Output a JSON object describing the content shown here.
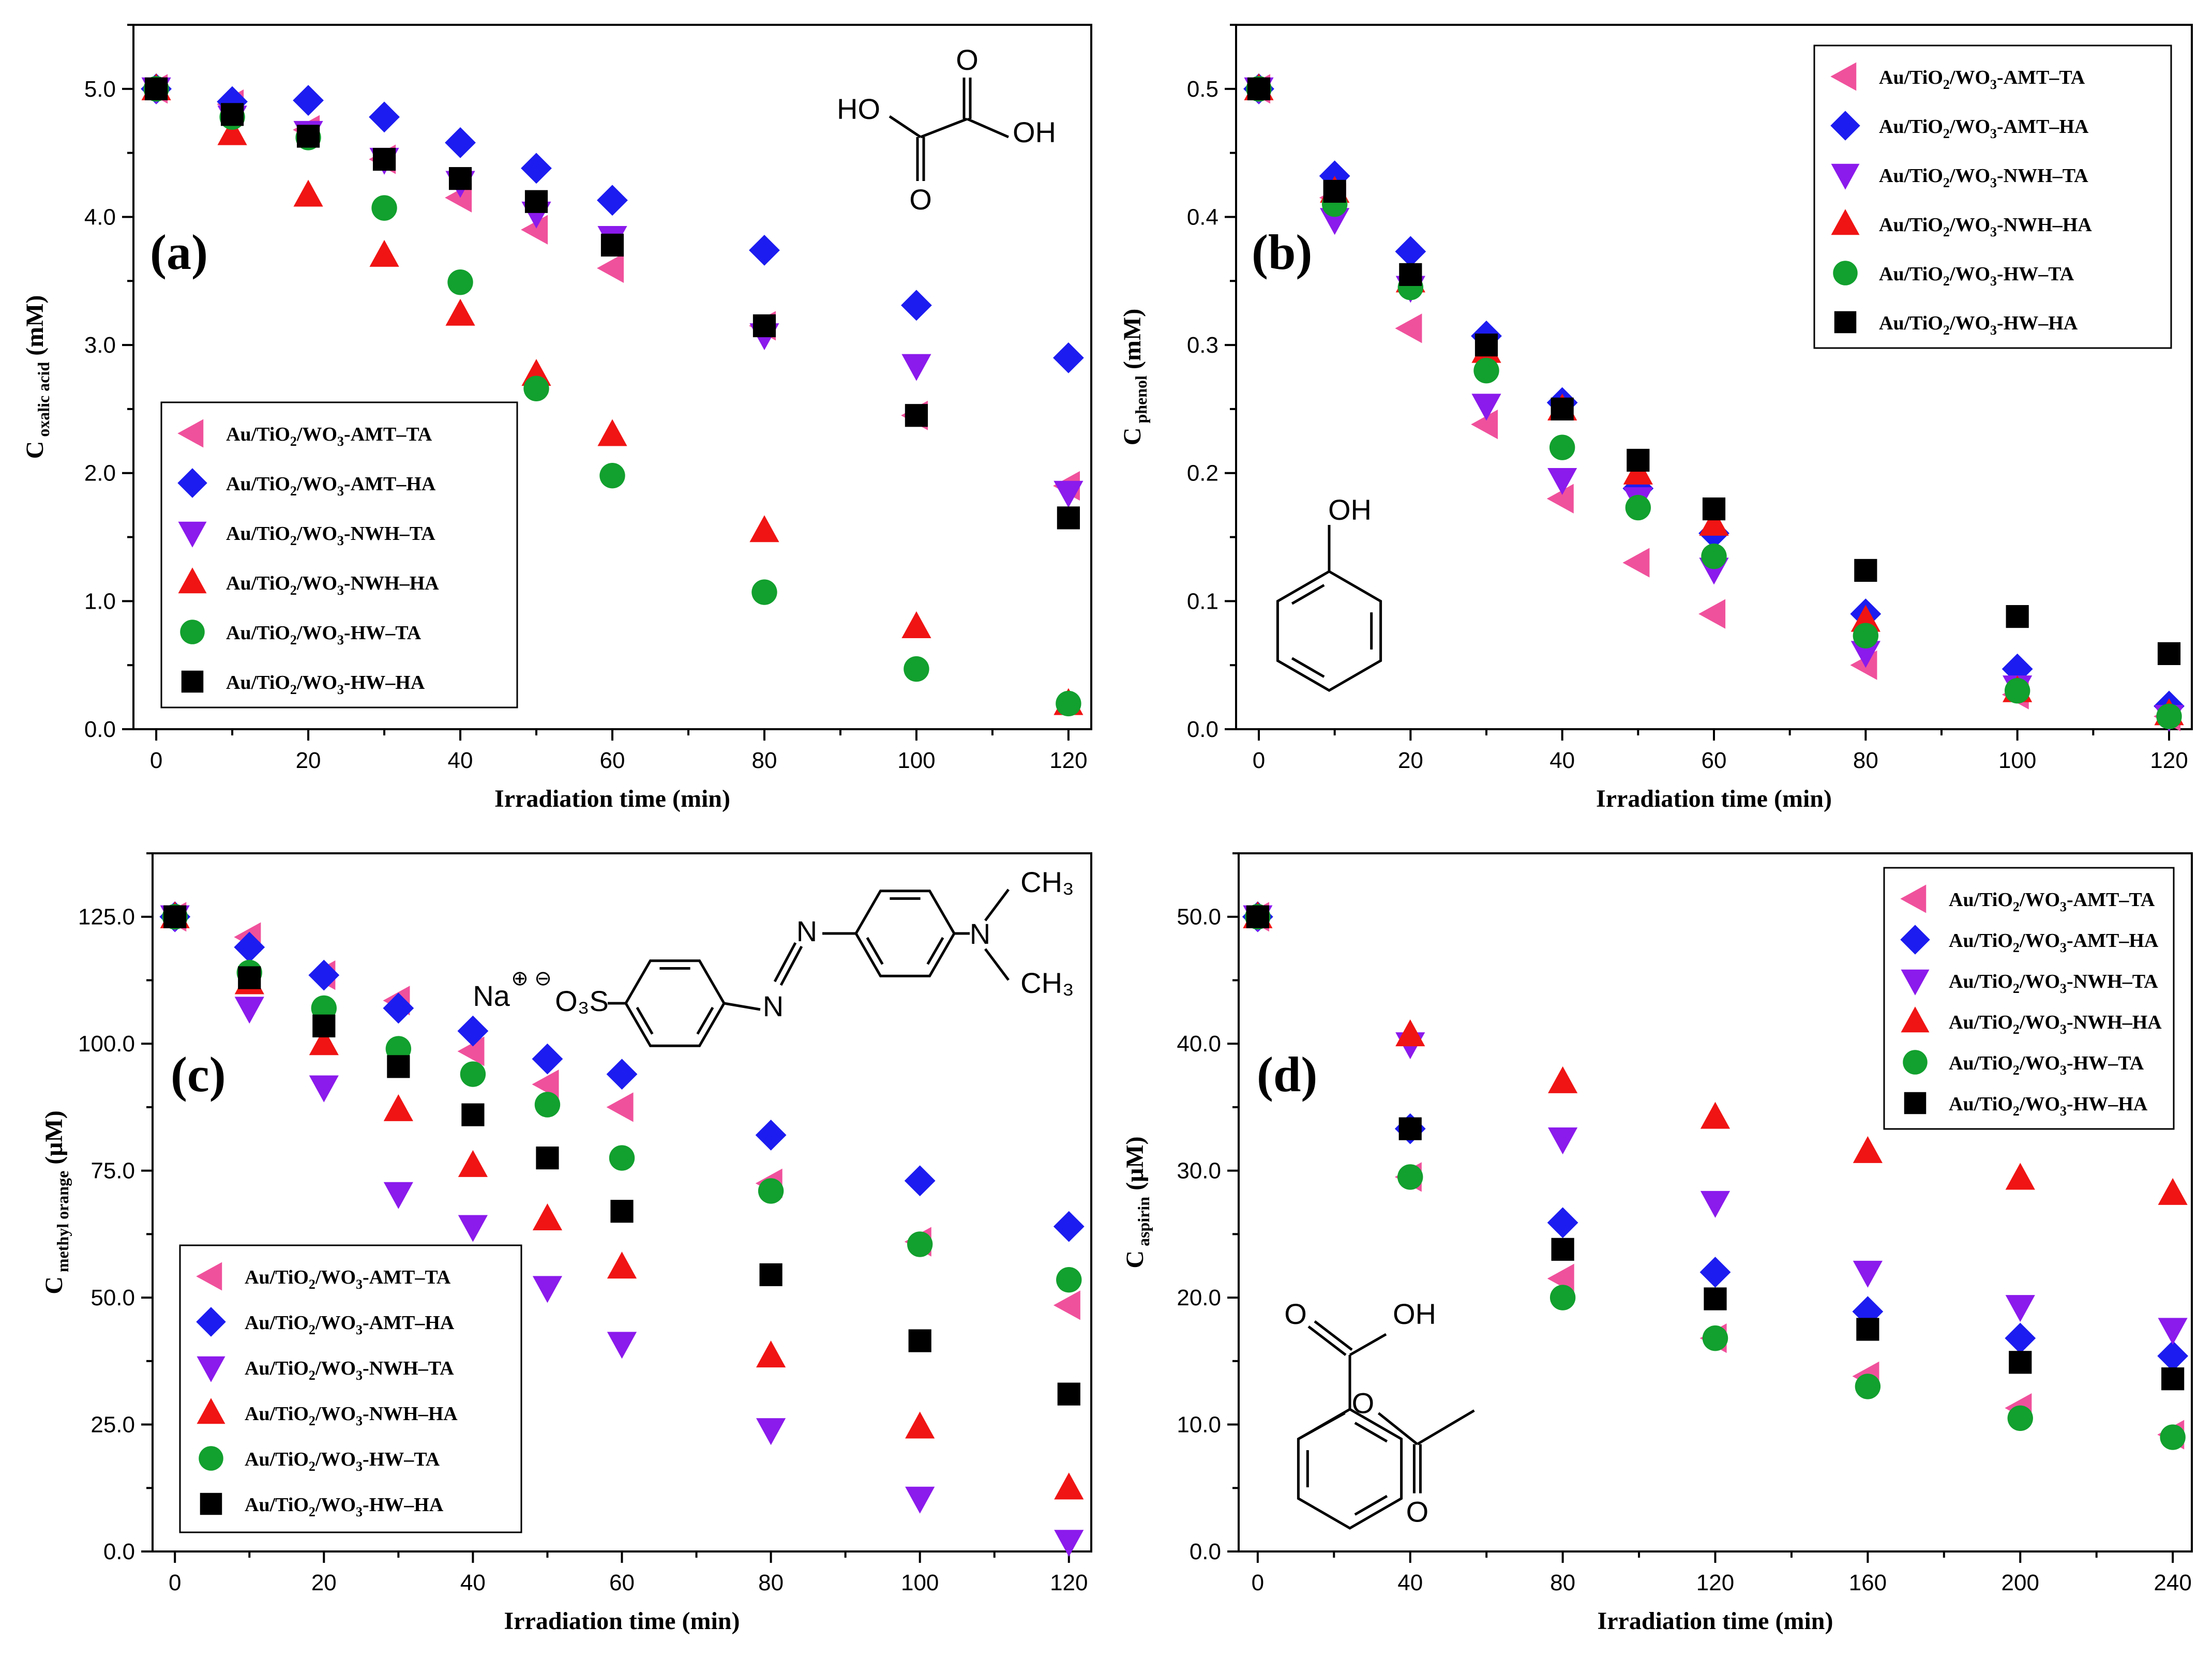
{
  "chart_data": [
    {
      "type": "scatter",
      "panel_label": "(a)",
      "xlabel": "Irradiation time (min)",
      "ylabel_main": "C",
      "ylabel_sub": "oxalic acid",
      "ylabel_unit": " (mM)",
      "xlim": [
        -3,
        123
      ],
      "ylim": [
        0,
        5.5
      ],
      "xticks": [
        0,
        20,
        40,
        60,
        80,
        100,
        120
      ],
      "yticks": [
        0.0,
        1.0,
        2.0,
        3.0,
        4.0,
        5.0
      ],
      "ytick_decimals": 1,
      "legend_position": "bottom-left",
      "series": [
        {
          "name": "Au/TiO2/WO3-AMT–TA",
          "marker": "tri-left",
          "color": "#f0519c",
          "x": [
            0,
            10,
            20,
            30,
            40,
            50,
            60,
            80,
            100,
            120
          ],
          "y": [
            5.0,
            4.88,
            4.68,
            4.45,
            4.15,
            3.9,
            3.6,
            3.15,
            2.45,
            1.9
          ]
        },
        {
          "name": "Au/TiO2/WO3-AMT–HA",
          "marker": "diamond",
          "color": "#1c1cf0",
          "x": [
            0,
            10,
            20,
            30,
            40,
            50,
            60,
            80,
            100,
            120
          ],
          "y": [
            5.0,
            4.9,
            4.91,
            4.78,
            4.58,
            4.38,
            4.13,
            3.74,
            3.31,
            2.9
          ]
        },
        {
          "name": "Au/TiO2/WO3-NWH–TA",
          "marker": "tri-down",
          "color": "#8b1aec",
          "x": [
            0,
            10,
            20,
            30,
            40,
            50,
            60,
            80,
            100,
            120
          ],
          "y": [
            5.0,
            4.78,
            4.66,
            4.45,
            4.27,
            4.03,
            3.84,
            3.08,
            2.84,
            1.85
          ]
        },
        {
          "name": "Au/TiO2/WO3-NWH–HA",
          "marker": "tri-up",
          "color": "#f01414",
          "x": [
            0,
            10,
            20,
            30,
            40,
            50,
            60,
            80,
            100,
            120
          ],
          "y": [
            5.0,
            4.65,
            4.17,
            3.7,
            3.24,
            2.77,
            2.3,
            1.55,
            0.8,
            0.2
          ]
        },
        {
          "name": "Au/TiO2/WO3-HW–TA",
          "marker": "circle",
          "color": "#12a02e",
          "x": [
            0,
            10,
            20,
            30,
            40,
            50,
            60,
            80,
            100,
            120
          ],
          "y": [
            5.0,
            4.78,
            4.62,
            4.07,
            3.49,
            2.66,
            1.98,
            1.07,
            0.47,
            0.2
          ]
        },
        {
          "name": "Au/TiO2/WO3-HW–HA",
          "marker": "square",
          "color": "#000000",
          "x": [
            0,
            10,
            20,
            30,
            40,
            50,
            60,
            80,
            100,
            120
          ],
          "y": [
            5.0,
            4.8,
            4.63,
            4.45,
            4.3,
            4.12,
            3.78,
            3.15,
            2.45,
            1.65
          ]
        }
      ],
      "molecule": {
        "name": "oxalic acid",
        "labels": [
          "O",
          "HO",
          "OH",
          "O"
        ]
      }
    },
    {
      "type": "scatter",
      "panel_label": "(b)",
      "xlabel": "Irradiation time (min)",
      "ylabel_main": "C",
      "ylabel_sub": "phenol",
      "ylabel_unit": " (mM)",
      "xlim": [
        -3,
        123
      ],
      "ylim": [
        0,
        0.55
      ],
      "xticks": [
        0,
        20,
        40,
        60,
        80,
        100,
        120
      ],
      "yticks": [
        0.0,
        0.1,
        0.2,
        0.3,
        0.4,
        0.5
      ],
      "ytick_decimals": 1,
      "legend_position": "top-right",
      "series": [
        {
          "name": "Au/TiO2/WO3-AMT–TA",
          "marker": "tri-left",
          "color": "#f0519c",
          "x": [
            0,
            10,
            20,
            30,
            40,
            50,
            60,
            80,
            100,
            120
          ],
          "y": [
            0.5,
            0.415,
            0.313,
            0.238,
            0.18,
            0.13,
            0.09,
            0.05,
            0.027,
            0.01
          ]
        },
        {
          "name": "Au/TiO2/WO3-AMT–HA",
          "marker": "diamond",
          "color": "#1c1cf0",
          "x": [
            0,
            10,
            20,
            30,
            40,
            50,
            60,
            80,
            100,
            120
          ],
          "y": [
            0.5,
            0.432,
            0.373,
            0.307,
            0.255,
            0.188,
            0.153,
            0.09,
            0.047,
            0.018
          ]
        },
        {
          "name": "Au/TiO2/WO3-NWH–TA",
          "marker": "tri-down",
          "color": "#8b1aec",
          "x": [
            0,
            10,
            20,
            30,
            40,
            50,
            60,
            80,
            100,
            120
          ],
          "y": [
            0.5,
            0.398,
            0.345,
            0.253,
            0.195,
            0.18,
            0.125,
            0.06,
            0.033,
            0.01
          ]
        },
        {
          "name": "Au/TiO2/WO3-NWH–HA",
          "marker": "tri-up",
          "color": "#f01414",
          "x": [
            0,
            10,
            20,
            30,
            40,
            50,
            60,
            80,
            100,
            120
          ],
          "y": [
            0.5,
            0.42,
            0.35,
            0.295,
            0.25,
            0.2,
            0.16,
            0.085,
            0.03,
            0.012
          ]
        },
        {
          "name": "Au/TiO2/WO3-HW–TA",
          "marker": "circle",
          "color": "#12a02e",
          "x": [
            0,
            10,
            20,
            30,
            40,
            50,
            60,
            80,
            100,
            120
          ],
          "y": [
            0.5,
            0.41,
            0.345,
            0.28,
            0.22,
            0.173,
            0.135,
            0.073,
            0.03,
            0.01
          ]
        },
        {
          "name": "Au/TiO2/WO3-HW–HA",
          "marker": "square",
          "color": "#000000",
          "x": [
            0,
            10,
            20,
            30,
            40,
            50,
            60,
            80,
            100,
            120
          ],
          "y": [
            0.5,
            0.42,
            0.355,
            0.3,
            0.25,
            0.21,
            0.172,
            0.124,
            0.088,
            0.059
          ]
        }
      ],
      "molecule": {
        "name": "phenol",
        "labels": [
          "OH"
        ]
      }
    },
    {
      "type": "scatter",
      "panel_label": "(c)",
      "xlabel": "Irradiation time (min)",
      "ylabel_main": "C",
      "ylabel_sub": "methyl orange",
      "ylabel_unit": " (μM)",
      "xlim": [
        -3,
        123
      ],
      "ylim": [
        0,
        137.5
      ],
      "xticks": [
        0,
        20,
        40,
        60,
        80,
        100,
        120
      ],
      "yticks": [
        0.0,
        25.0,
        50.0,
        75.0,
        100.0,
        125.0
      ],
      "ytick_decimals": 1,
      "legend_position": "bottom-left",
      "series": [
        {
          "name": "Au/TiO2/WO3-AMT–TA",
          "marker": "tri-left",
          "color": "#f0519c",
          "x": [
            0,
            10,
            20,
            30,
            40,
            50,
            60,
            80,
            100,
            120
          ],
          "y": [
            125,
            121,
            113.5,
            108.5,
            98.5,
            92,
            87.5,
            72.5,
            61,
            48.5
          ]
        },
        {
          "name": "Au/TiO2/WO3-AMT–HA",
          "marker": "diamond",
          "color": "#1c1cf0",
          "x": [
            0,
            10,
            20,
            30,
            40,
            50,
            60,
            80,
            100,
            120
          ],
          "y": [
            125,
            119,
            113.5,
            107,
            102.5,
            97,
            94,
            82,
            73,
            64
          ]
        },
        {
          "name": "Au/TiO2/WO3-NWH–TA",
          "marker": "tri-down",
          "color": "#8b1aec",
          "x": [
            0,
            10,
            20,
            30,
            40,
            50,
            60,
            80,
            100,
            120
          ],
          "y": [
            125,
            107,
            91.5,
            70.5,
            64,
            52,
            41,
            24,
            10.5,
            2
          ]
        },
        {
          "name": "Au/TiO2/WO3-NWH–HA",
          "marker": "tri-up",
          "color": "#f01414",
          "x": [
            0,
            10,
            20,
            30,
            40,
            50,
            60,
            80,
            100,
            120
          ],
          "y": [
            125,
            112,
            100,
            87,
            76,
            65.5,
            56,
            38.5,
            24.5,
            12.5
          ]
        },
        {
          "name": "Au/TiO2/WO3-HW–TA",
          "marker": "circle",
          "color": "#12a02e",
          "x": [
            0,
            10,
            20,
            30,
            40,
            50,
            60,
            80,
            100,
            120
          ],
          "y": [
            125,
            114,
            107,
            99,
            94,
            88,
            77.5,
            71,
            60.5,
            53.5
          ]
        },
        {
          "name": "Au/TiO2/WO3-HW–HA",
          "marker": "square",
          "color": "#000000",
          "x": [
            0,
            10,
            20,
            30,
            40,
            50,
            60,
            80,
            100,
            120
          ],
          "y": [
            125,
            113,
            103.5,
            95.5,
            86,
            77.5,
            67,
            54.5,
            41.5,
            31
          ]
        }
      ],
      "molecule": {
        "name": "methyl orange",
        "labels": [
          "Na",
          "O₃S",
          "N",
          "N",
          "N",
          "CH₃",
          "CH₃"
        ]
      }
    },
    {
      "type": "scatter",
      "panel_label": "(d)",
      "xlabel": "Irradiation time (min)",
      "ylabel_main": "C",
      "ylabel_sub": "aspirin",
      "ylabel_unit": " (μM)",
      "xlim": [
        -5,
        245
      ],
      "ylim": [
        0,
        55
      ],
      "xticks": [
        0,
        40,
        80,
        120,
        160,
        200,
        240
      ],
      "yticks": [
        0.0,
        10.0,
        20.0,
        30.0,
        40.0,
        50.0
      ],
      "ytick_decimals": 1,
      "legend_position": "top-right",
      "series": [
        {
          "name": "Au/TiO2/WO3-AMT–TA",
          "marker": "tri-left",
          "color": "#f0519c",
          "x": [
            0,
            40,
            80,
            120,
            160,
            200,
            240
          ],
          "y": [
            50,
            29.5,
            21.5,
            16.8,
            13.8,
            11.3,
            9.2
          ]
        },
        {
          "name": "Au/TiO2/WO3-AMT–HA",
          "marker": "diamond",
          "color": "#1c1cf0",
          "x": [
            0,
            40,
            80,
            120,
            160,
            200,
            240
          ],
          "y": [
            50,
            33.3,
            25.9,
            22,
            18.9,
            16.8,
            15.4
          ]
        },
        {
          "name": "Au/TiO2/WO3-NWH–TA",
          "marker": "tri-down",
          "color": "#8b1aec",
          "x": [
            0,
            40,
            80,
            120,
            160,
            200,
            240
          ],
          "y": [
            50,
            40,
            32.5,
            27.5,
            22,
            19.3,
            17.5
          ]
        },
        {
          "name": "Au/TiO2/WO3-NWH–HA",
          "marker": "tri-up",
          "color": "#f01414",
          "x": [
            0,
            40,
            80,
            120,
            160,
            200,
            240
          ],
          "y": [
            50,
            40.7,
            37,
            34.2,
            31.5,
            29.4,
            28.2
          ]
        },
        {
          "name": "Au/TiO2/WO3-HW–TA",
          "marker": "circle",
          "color": "#12a02e",
          "x": [
            0,
            40,
            80,
            120,
            160,
            200,
            240
          ],
          "y": [
            50,
            29.5,
            20,
            16.8,
            13,
            10.5,
            9
          ]
        },
        {
          "name": "Au/TiO2/WO3-HW–HA",
          "marker": "square",
          "color": "#000000",
          "x": [
            0,
            40,
            80,
            120,
            160,
            200,
            240
          ],
          "y": [
            50,
            33.3,
            23.8,
            19.9,
            17.5,
            14.9,
            13.6
          ]
        }
      ],
      "molecule": {
        "name": "aspirin",
        "labels": [
          "O",
          "OH",
          "O",
          "O"
        ]
      }
    }
  ]
}
